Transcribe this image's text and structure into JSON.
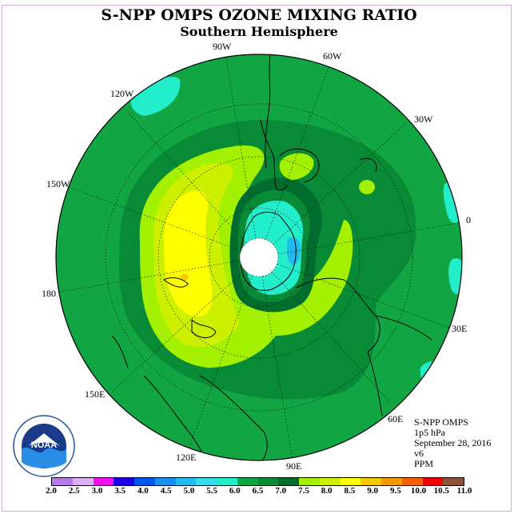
{
  "title": "S-NPP OMPS OZONE MIXING RATIO",
  "subtitle": "Southern Hemisphere",
  "longitude_labels": [
    "90W",
    "60W",
    "120W",
    "30W",
    "150W",
    "0",
    "180",
    "30E",
    "150E",
    "60E",
    "120E",
    "90E"
  ],
  "info": {
    "instrument": "S-NPP OMPS",
    "level": "1p5 hPa",
    "date": "September 28, 2016",
    "version": "v6",
    "units": "PPM"
  },
  "logo_text": "NOAA",
  "colorbar": {
    "ticks": [
      "2.0",
      "2.5",
      "3.0",
      "3.5",
      "4.0",
      "4.5",
      "5.0",
      "5.5",
      "6.0",
      "6.5",
      "7.0",
      "7.5",
      "8.0",
      "8.5",
      "9.0",
      "9.5",
      "10.0",
      "10.5",
      "11.0"
    ],
    "colors": [
      "#b47be6",
      "#d9aef2",
      "#ee11ee",
      "#1e00e6",
      "#0055ee",
      "#1a8ff0",
      "#22bbee",
      "#33ddee",
      "#22eecc",
      "#11a544",
      "#098a36",
      "#006d2e",
      "#a3f000",
      "#ccf000",
      "#ffff00",
      "#f5c800",
      "#f59a00",
      "#f55f00",
      "#ee0000",
      "#8b5234"
    ]
  }
}
